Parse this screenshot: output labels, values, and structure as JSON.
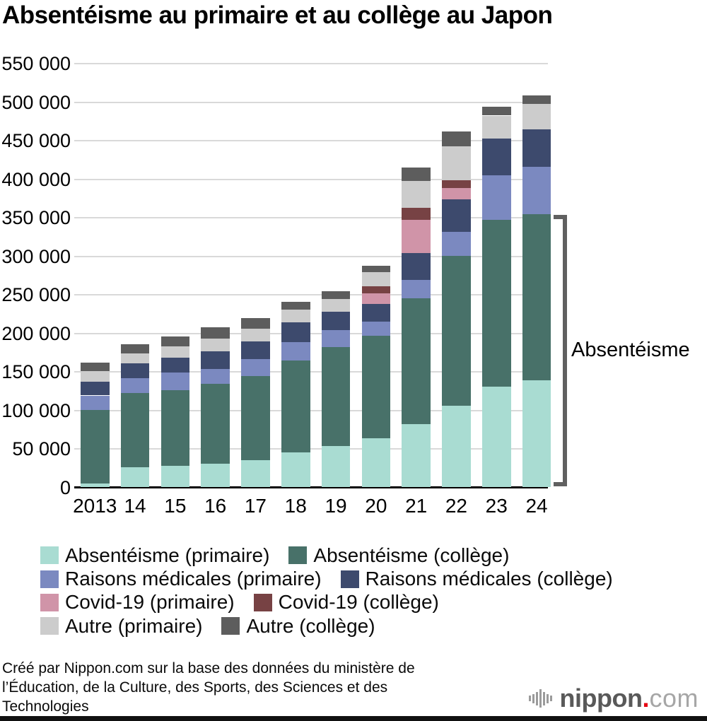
{
  "title": "Absentéisme au primaire et au collège au Japon",
  "annotation": {
    "label": "Absentéisme"
  },
  "legend": {
    "rows": [
      [
        {
          "label": "Absentéisme (primaire)",
          "color": "#a9dcd2"
        },
        {
          "label": "Absentéisme (collège)",
          "color": "#487169"
        }
      ],
      [
        {
          "label": "Raisons médicales (primaire)",
          "color": "#7b89c0"
        },
        {
          "label": "Raisons médicales (collège)",
          "color": "#3d4a6d"
        }
      ],
      [
        {
          "label": "Covid-19 (primaire)",
          "color": "#d094a8"
        },
        {
          "label": "Covid-19 (collège)",
          "color": "#774244"
        }
      ],
      [
        {
          "label": "Autre (primaire)",
          "color": "#cccccc"
        },
        {
          "label": "Autre (collège)",
          "color": "#5d5d5d"
        }
      ]
    ]
  },
  "footer": {
    "lines": [
      "Créé par Nippon.com sur la base des données du ministère de",
      "l’Éducation, de la Culture, des Sports, des Sciences et des",
      "Technologies"
    ]
  },
  "logo": {
    "name": "nippon",
    "dot": ".",
    "tld": "com"
  },
  "chart_data": {
    "type": "bar",
    "stacked": true,
    "title": "Absentéisme au primaire et au collège au Japon",
    "categories": [
      "2013",
      "14",
      "15",
      "16",
      "17",
      "18",
      "19",
      "20",
      "21",
      "22",
      "23",
      "24"
    ],
    "series": [
      {
        "name": "Absentéisme (primaire)",
        "color": "#a9dcd2",
        "values": [
          5000,
          25900,
          27600,
          30400,
          35000,
          44800,
          53400,
          63400,
          81500,
          105100,
          130400,
          138000
        ]
      },
      {
        "name": "Absentéisme (collège)",
        "color": "#487169",
        "values": [
          94700,
          96000,
          98400,
          103200,
          109000,
          119700,
          127900,
          133000,
          163400,
          194500,
          216100,
          216200
        ]
      },
      {
        "name": "Raisons médicales (primaire)",
        "color": "#7b89c0",
        "values": [
          19000,
          19300,
          22300,
          19600,
          22000,
          23500,
          22000,
          17700,
          23800,
          31700,
          57500,
          60800
        ]
      },
      {
        "name": "Raisons médicales (collège)",
        "color": "#3d4a6d",
        "values": [
          18300,
          18900,
          19300,
          23200,
          23200,
          26000,
          24400,
          22900,
          34400,
          42200,
          48000,
          48500
        ]
      },
      {
        "name": "Covid-19 (primaire)",
        "color": "#d094a8",
        "values": [
          0,
          0,
          0,
          0,
          0,
          0,
          0,
          13800,
          43500,
          14700,
          0,
          0
        ]
      },
      {
        "name": "Covid-19 (collège)",
        "color": "#774244",
        "values": [
          0,
          0,
          0,
          0,
          0,
          0,
          0,
          9200,
          15600,
          9800,
          0,
          0
        ]
      },
      {
        "name": "Autre (primaire)",
        "color": "#cccccc",
        "values": [
          13100,
          13200,
          15200,
          16500,
          16500,
          15900,
          15900,
          18400,
          34400,
          43400,
          29700,
          33000
        ]
      },
      {
        "name": "Autre (collège)",
        "color": "#5d5d5d",
        "values": [
          11400,
          11600,
          12300,
          14100,
          13100,
          10600,
          10100,
          8500,
          17500,
          19300,
          11500,
          11600
        ]
      }
    ],
    "ylim": [
      0,
      550000
    ],
    "ytick_step": 50000,
    "ytick_labels": [
      "0",
      "50 000",
      "100 000",
      "150 000",
      "200 000",
      "250 000",
      "300 000",
      "350 000",
      "400 000",
      "450 000",
      "500 000",
      "550 000"
    ],
    "grid": "horizontal-only",
    "legend_position": "bottom",
    "annotation": {
      "label": "Absentéisme",
      "note": "bracket spans absentéisme (primaire + collège) of 2024",
      "bracket_top_value": 354200
    }
  }
}
